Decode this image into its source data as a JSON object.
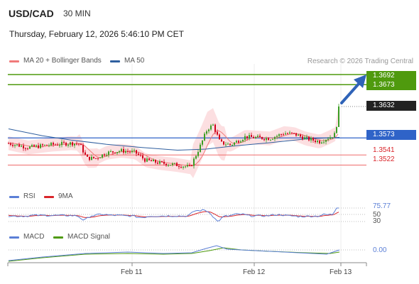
{
  "header": {
    "symbol": "USD/CAD",
    "interval": "30 MIN",
    "timestamp": "Thursday, February 12, 2026 5:46:10 PM CET"
  },
  "legend_main": [
    {
      "label": "MA 20 + Bollinger Bands",
      "color": "#f07a7a"
    },
    {
      "label": "MA 50",
      "color": "#2f5f9f"
    }
  ],
  "copyright": "Research © 2026 Trading Central",
  "price_levels": [
    {
      "value": "1.3692",
      "style": "tag",
      "color": "#4f9a0e"
    },
    {
      "value": "1.3673",
      "style": "tag",
      "color": "#4f9a0e"
    },
    {
      "value": "1.3632",
      "style": "tag",
      "color": "#222222"
    },
    {
      "value": "1.3573",
      "style": "tag",
      "color": "#2f63c8"
    },
    {
      "value": "1.3541",
      "style": "plain",
      "color": "#d9262b"
    },
    {
      "value": "1.3522",
      "style": "plain",
      "color": "#d9262b"
    }
  ],
  "rsi_panel": {
    "legend": [
      {
        "label": "RSI",
        "color": "#5b7fd6"
      },
      {
        "label": "9MA",
        "color": "#d9262b"
      }
    ],
    "levels": [
      "75.77",
      "50",
      "30"
    ]
  },
  "macd_panel": {
    "legend": [
      {
        "label": "MACD",
        "color": "#5b7fd6"
      },
      {
        "label": "MACD Signal",
        "color": "#4f9a0e"
      }
    ],
    "value": "0.00"
  },
  "x_axis": {
    "labels": [
      "Feb 11",
      "Feb 12",
      "Feb 13"
    ]
  },
  "colors": {
    "up": "#3a9d23",
    "down": "#d0021b",
    "resistance": "#4f9a0e",
    "pivot": "#2f63c8",
    "support": "#ef6b6b",
    "bollinger": "#fbd9dc",
    "arrow": "#2f63b8"
  }
}
